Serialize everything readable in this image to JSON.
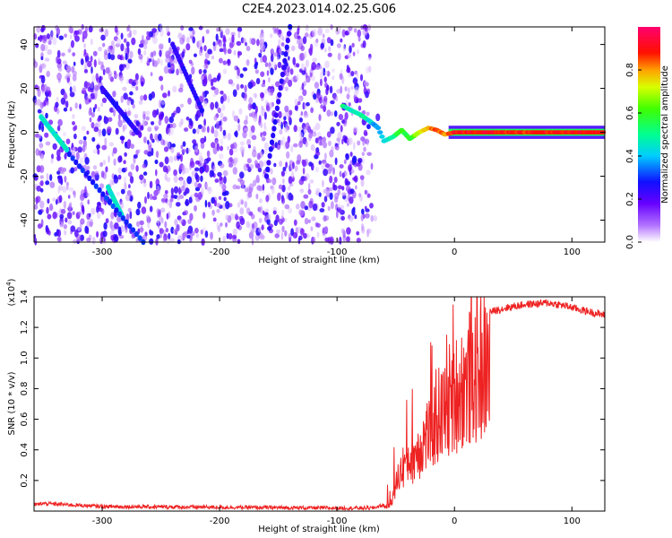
{
  "title": "C2E4.2023.014.02.25.G06",
  "chart_data": [
    {
      "type": "heatmap",
      "name": "spectrogram",
      "xlabel": "Height of straight line (km)",
      "ylabel": "Frequency (Hz)",
      "xlim": [
        -358,
        128
      ],
      "ylim": [
        -50,
        48
      ],
      "xticks": [
        -300,
        -200,
        -100,
        0,
        100
      ],
      "yticks": [
        -40,
        -20,
        0,
        20,
        40
      ],
      "colorbar": {
        "label": "Normalized spectral amplitude",
        "range": [
          0,
          1
        ],
        "ticks": [
          "0.0",
          "0.2",
          "0.4",
          "0.6",
          "0.8"
        ],
        "tick_values": [
          0.0,
          0.2,
          0.4,
          0.6,
          0.8
        ]
      },
      "features": {
        "noise_region_x": [
          -358,
          -72
        ],
        "carrier_trace": [
          [
            -95,
            12,
            0.5
          ],
          [
            -88,
            10,
            0.45
          ],
          [
            -80,
            8,
            0.5
          ],
          [
            -72,
            5,
            0.45
          ],
          [
            -65,
            2,
            0.35
          ],
          [
            -60,
            -4,
            0.4
          ],
          [
            -52,
            -2,
            0.5
          ],
          [
            -45,
            1,
            0.6
          ],
          [
            -38,
            -3,
            0.55
          ],
          [
            -30,
            0,
            0.7
          ],
          [
            -22,
            2,
            0.8
          ],
          [
            -15,
            1,
            0.85
          ],
          [
            -8,
            -1,
            0.8
          ],
          [
            0,
            0,
            0.9
          ],
          [
            30,
            0,
            0.9
          ],
          [
            60,
            0,
            0.88
          ],
          [
            90,
            0,
            0.9
          ],
          [
            128,
            0,
            0.9
          ]
        ],
        "diagonal_streaks": [
          [
            -352,
            7,
            -330,
            -8,
            0.45
          ],
          [
            -295,
            -25,
            -283,
            -38,
            0.45
          ],
          [
            -328,
            -10,
            -265,
            -50,
            0.3
          ],
          [
            -160,
            -20,
            -140,
            48,
            0.25
          ],
          [
            -300,
            20,
            -270,
            0,
            0.25
          ],
          [
            -240,
            40,
            -215,
            10,
            0.25
          ]
        ]
      }
    },
    {
      "type": "line",
      "name": "snr",
      "xlabel": "Height of straight line (km)",
      "ylabel": "SNR (10 * v/v)",
      "ylabel_multiplier": "(x10",
      "ylabel_multiplier_exp": "4",
      "ylabel_multiplier_close": ")",
      "xlim": [
        -358,
        128
      ],
      "ylim": [
        0,
        1.4
      ],
      "xticks": [
        -300,
        -200,
        -100,
        0,
        100
      ],
      "yticks": [
        0.2,
        0.4,
        0.6,
        0.8,
        1.0,
        1.2,
        1.4
      ],
      "ytick_labels": [
        "0.2",
        "0.4",
        "0.6",
        "0.8",
        "1.0",
        "1.2",
        "1.4"
      ],
      "color": "#ee2222",
      "envelope": [
        [
          -358,
          0.04
        ],
        [
          -350,
          0.05
        ],
        [
          -300,
          0.03
        ],
        [
          -200,
          0.025
        ],
        [
          -100,
          0.02
        ],
        [
          -70,
          0.02
        ],
        [
          -55,
          0.05
        ],
        [
          -48,
          0.3
        ],
        [
          -42,
          0.45
        ],
        [
          -35,
          0.5
        ],
        [
          -28,
          0.6
        ],
        [
          -20,
          0.75
        ],
        [
          -12,
          0.85
        ],
        [
          -5,
          0.95
        ],
        [
          0,
          1.05
        ],
        [
          10,
          1.15
        ],
        [
          20,
          1.25
        ],
        [
          30,
          1.3
        ],
        [
          45,
          1.33
        ],
        [
          60,
          1.35
        ],
        [
          80,
          1.36
        ],
        [
          95,
          1.34
        ],
        [
          110,
          1.31
        ],
        [
          128,
          1.28
        ]
      ]
    }
  ]
}
